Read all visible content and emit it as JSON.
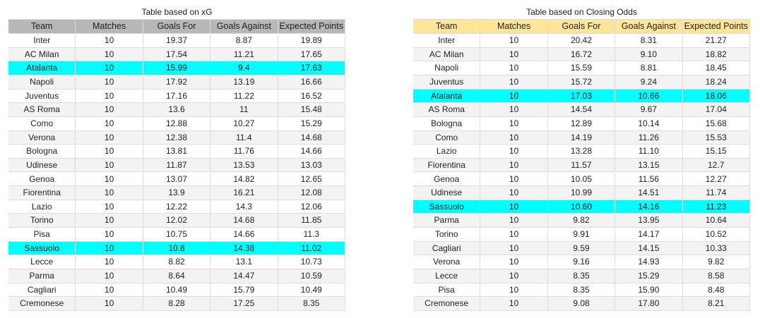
{
  "tables": [
    {
      "title": "Table based on xG",
      "header_color": "#b7b7b7",
      "highlight_color": "#00ffff",
      "highlighted_rows": [
        2,
        15
      ],
      "columns": [
        "Team",
        "Matches",
        "Goals For",
        "Goals Against",
        "Expected Points"
      ],
      "rows": [
        [
          "Inter",
          "10",
          "19.37",
          "8.87",
          "19.89"
        ],
        [
          "AC Milan",
          "10",
          "17.54",
          "11.21",
          "17.65"
        ],
        [
          "Atalanta",
          "10",
          "15.99",
          "9.4",
          "17.63"
        ],
        [
          "Napoli",
          "10",
          "17.92",
          "13.19",
          "16.66"
        ],
        [
          "Juventus",
          "10",
          "17.16",
          "11.22",
          "16.52"
        ],
        [
          "AS Roma",
          "10",
          "13.6",
          "11",
          "15.48"
        ],
        [
          "Como",
          "10",
          "12.88",
          "10.27",
          "15.29"
        ],
        [
          "Verona",
          "10",
          "12.38",
          "11.4",
          "14.68"
        ],
        [
          "Bologna",
          "10",
          "13.81",
          "11.76",
          "14.66"
        ],
        [
          "Udinese",
          "10",
          "11.87",
          "13.53",
          "13.03"
        ],
        [
          "Genoa",
          "10",
          "13.07",
          "14.82",
          "12.65"
        ],
        [
          "Fiorentina",
          "10",
          "13.9",
          "16.21",
          "12.08"
        ],
        [
          "Lazio",
          "10",
          "12.22",
          "14.3",
          "12.06"
        ],
        [
          "Torino",
          "10",
          "12.02",
          "14.68",
          "11.85"
        ],
        [
          "Pisa",
          "10",
          "10.75",
          "14.66",
          "11.3"
        ],
        [
          "Sassuolo",
          "10",
          "10.8",
          "14.38",
          "11.02"
        ],
        [
          "Lecce",
          "10",
          "8.82",
          "13.1",
          "10.73"
        ],
        [
          "Parma",
          "10",
          "8.64",
          "14.47",
          "10.59"
        ],
        [
          "Cagliari",
          "10",
          "10.49",
          "15.79",
          "10.49"
        ],
        [
          "Cremonese",
          "10",
          "8.28",
          "17.25",
          "8.35"
        ]
      ]
    },
    {
      "title": "Table based on Closing Odds",
      "header_color": "#ffe599",
      "highlight_color": "#00ffff",
      "highlighted_rows": [
        4,
        12
      ],
      "columns": [
        "Team",
        "Matches",
        "Goals For",
        "Goals Against",
        "Expected Points"
      ],
      "rows": [
        [
          "Inter",
          "10",
          "20.42",
          "8.31",
          "21.27"
        ],
        [
          "AC Milan",
          "10",
          "16.72",
          "9.10",
          "18.82"
        ],
        [
          "Napoli",
          "10",
          "15.59",
          "8.81",
          "18.45"
        ],
        [
          "Juventus",
          "10",
          "15.72",
          "9.24",
          "18.24"
        ],
        [
          "Atalanta",
          "10",
          "17.03",
          "10.66",
          "18.06"
        ],
        [
          "AS Roma",
          "10",
          "14.54",
          "9.67",
          "17.04"
        ],
        [
          "Bologna",
          "10",
          "12.89",
          "10.14",
          "15.68"
        ],
        [
          "Como",
          "10",
          "14.19",
          "11.26",
          "15.53"
        ],
        [
          "Lazio",
          "10",
          "13.28",
          "11.10",
          "15.15"
        ],
        [
          "Fiorentina",
          "10",
          "11.57",
          "13.15",
          "12.7"
        ],
        [
          "Genoa",
          "10",
          "10.05",
          "11.56",
          "12.27"
        ],
        [
          "Udinese",
          "10",
          "10.99",
          "14.51",
          "11.74"
        ],
        [
          "Sassuolo",
          "10",
          "10.60",
          "14.16",
          "11.23"
        ],
        [
          "Parma",
          "10",
          "9.82",
          "13.95",
          "10.64"
        ],
        [
          "Torino",
          "10",
          "9.91",
          "14.17",
          "10.52"
        ],
        [
          "Cagliari",
          "10",
          "9.59",
          "14.15",
          "10.33"
        ],
        [
          "Verona",
          "10",
          "9.16",
          "14.93",
          "9.82"
        ],
        [
          "Lecce",
          "10",
          "8.35",
          "15.29",
          "8.58"
        ],
        [
          "Pisa",
          "10",
          "8.35",
          "15.90",
          "8.48"
        ],
        [
          "Cremonese",
          "10",
          "9.08",
          "17.80",
          "8.21"
        ]
      ]
    }
  ]
}
